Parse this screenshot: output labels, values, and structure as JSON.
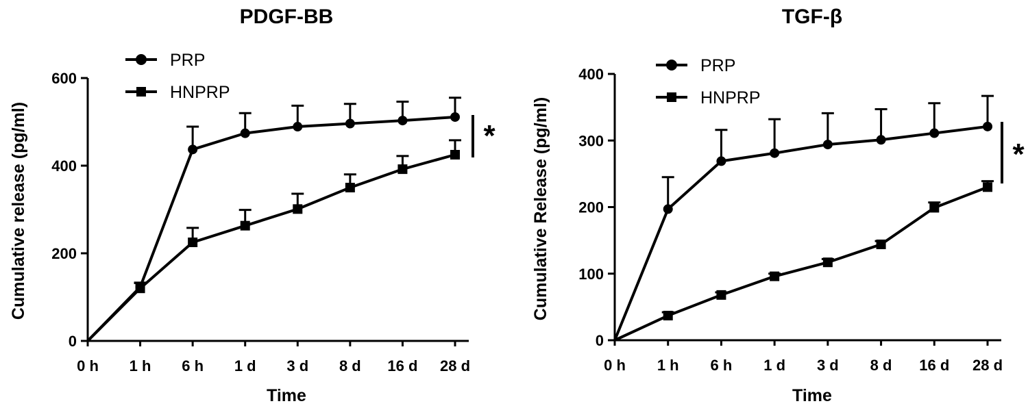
{
  "chart_data": [
    {
      "type": "line",
      "title": "PDGF-BB",
      "xlabel": "Time",
      "ylabel": "Cumulative release (pg/ml)",
      "categories": [
        "0 h",
        "1 h",
        "6 h",
        "1 d",
        "3 d",
        "8 d",
        "16 d",
        "28 d"
      ],
      "ylim": [
        0,
        600
      ],
      "yticks": [
        "0",
        "200",
        "400",
        "600"
      ],
      "legend_position": "top-left",
      "significance_label": "*",
      "series": [
        {
          "name": "PRP",
          "marker": "circle",
          "values": [
            0,
            123,
            437,
            474,
            489,
            496,
            503,
            511
          ],
          "errors": [
            0,
            10,
            52,
            46,
            48,
            45,
            43,
            44
          ]
        },
        {
          "name": "HNPRP",
          "marker": "square",
          "values": [
            0,
            120,
            225,
            263,
            301,
            350,
            392,
            425
          ],
          "errors": [
            0,
            12,
            33,
            36,
            35,
            30,
            30,
            33
          ]
        }
      ]
    },
    {
      "type": "line",
      "title": "TGF-β",
      "xlabel": "Time",
      "ylabel": "Cumulative Release (pg/ml)",
      "categories": [
        "0 h",
        "1 h",
        "6 h",
        "1 d",
        "3 d",
        "8 d",
        "16 d",
        "28 d"
      ],
      "ylim": [
        0,
        400
      ],
      "yticks": [
        "0",
        "100",
        "200",
        "300",
        "400"
      ],
      "legend_position": "top-left",
      "significance_label": "*",
      "series": [
        {
          "name": "PRP",
          "marker": "circle",
          "values": [
            0,
            197,
            269,
            281,
            294,
            301,
            311,
            321
          ],
          "errors": [
            0,
            48,
            47,
            51,
            47,
            46,
            45,
            46
          ]
        },
        {
          "name": "HNPRP",
          "marker": "square",
          "values": [
            0,
            37,
            68,
            96,
            117,
            144,
            199,
            230
          ],
          "errors": [
            0,
            5,
            4,
            4,
            5,
            5,
            8,
            9
          ]
        }
      ]
    }
  ]
}
